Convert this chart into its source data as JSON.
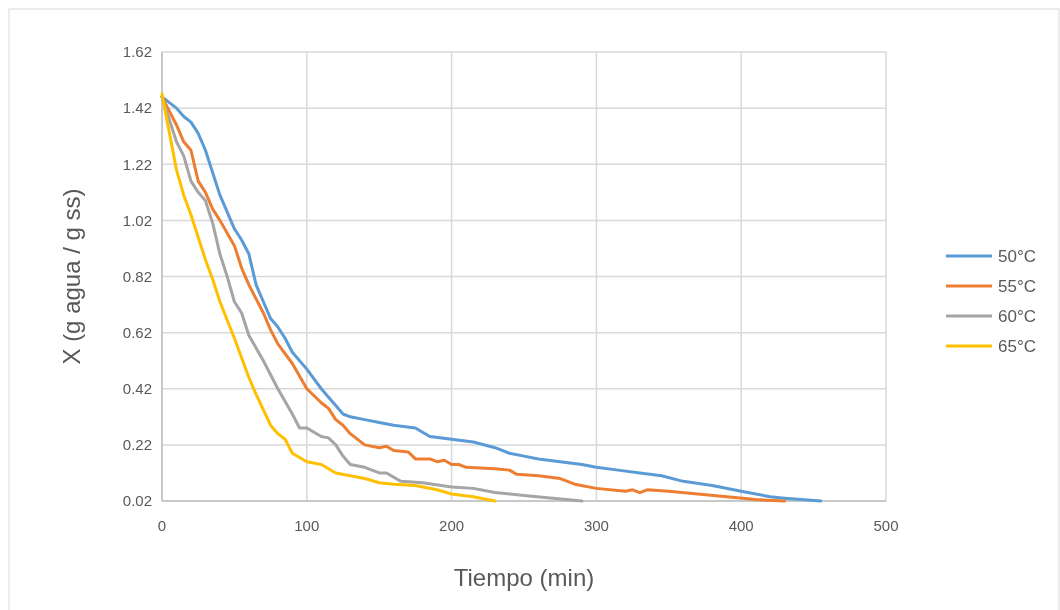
{
  "chart_data": {
    "type": "line",
    "xlabel": "Tiempo (min)",
    "ylabel": "X (g agua / g ss)",
    "xlim": [
      0,
      500
    ],
    "xticks": [
      0,
      100,
      200,
      300,
      400,
      500
    ],
    "ylim": [
      0.02,
      1.62
    ],
    "yticks": [
      0.02,
      0.22,
      0.42,
      0.62,
      0.82,
      1.02,
      1.22,
      1.42,
      1.62
    ],
    "grid": true,
    "legend": "right",
    "marker": "none",
    "line_style": "solid",
    "series": [
      {
        "name": "50°C",
        "color": "#5b9bd5",
        "x": [
          0,
          10,
          15,
          20,
          25,
          30,
          35,
          40,
          45,
          50,
          55,
          60,
          65,
          70,
          75,
          80,
          85,
          90,
          100,
          110,
          115,
          120,
          125,
          130,
          140,
          150,
          160,
          175,
          185,
          200,
          215,
          230,
          240,
          250,
          260,
          275,
          290,
          300,
          315,
          330,
          345,
          360,
          380,
          400,
          420,
          430,
          455
        ],
        "values": [
          1.46,
          1.42,
          1.39,
          1.37,
          1.33,
          1.27,
          1.19,
          1.11,
          1.05,
          0.99,
          0.95,
          0.9,
          0.79,
          0.73,
          0.67,
          0.64,
          0.6,
          0.55,
          0.49,
          0.42,
          0.39,
          0.36,
          0.33,
          0.32,
          0.31,
          0.3,
          0.29,
          0.28,
          0.25,
          0.24,
          0.23,
          0.21,
          0.19,
          0.18,
          0.17,
          0.16,
          0.15,
          0.14,
          0.13,
          0.12,
          0.11,
          0.09,
          0.075,
          0.055,
          0.035,
          0.03,
          0.02
        ]
      },
      {
        "name": "55°C",
        "color": "#ed7d31",
        "x": [
          0,
          10,
          15,
          20,
          25,
          30,
          35,
          40,
          50,
          55,
          60,
          70,
          75,
          80,
          90,
          100,
          110,
          115,
          120,
          125,
          130,
          140,
          150,
          155,
          160,
          170,
          175,
          185,
          190,
          195,
          200,
          205,
          210,
          230,
          240,
          245,
          260,
          275,
          285,
          300,
          320,
          325,
          330,
          335,
          350,
          370,
          390,
          410,
          430
        ],
        "values": [
          1.46,
          1.36,
          1.3,
          1.27,
          1.16,
          1.12,
          1.06,
          1.02,
          0.93,
          0.85,
          0.79,
          0.69,
          0.63,
          0.58,
          0.51,
          0.42,
          0.37,
          0.35,
          0.31,
          0.29,
          0.26,
          0.22,
          0.21,
          0.215,
          0.2,
          0.195,
          0.17,
          0.17,
          0.16,
          0.165,
          0.15,
          0.15,
          0.14,
          0.135,
          0.13,
          0.115,
          0.11,
          0.1,
          0.08,
          0.065,
          0.055,
          0.06,
          0.05,
          0.06,
          0.055,
          0.045,
          0.035,
          0.025,
          0.02
        ]
      },
      {
        "name": "60°C",
        "color": "#a5a5a5",
        "x": [
          0,
          10,
          15,
          20,
          25,
          30,
          35,
          40,
          45,
          50,
          55,
          60,
          70,
          80,
          90,
          95,
          100,
          110,
          115,
          120,
          125,
          130,
          140,
          150,
          155,
          165,
          180,
          200,
          215,
          230,
          250,
          270,
          290
        ],
        "values": [
          1.46,
          1.3,
          1.25,
          1.16,
          1.12,
          1.09,
          1.01,
          0.9,
          0.82,
          0.73,
          0.69,
          0.61,
          0.52,
          0.42,
          0.33,
          0.28,
          0.28,
          0.25,
          0.245,
          0.22,
          0.18,
          0.15,
          0.14,
          0.12,
          0.12,
          0.09,
          0.085,
          0.07,
          0.065,
          0.05,
          0.04,
          0.03,
          0.02
        ]
      },
      {
        "name": "65°C",
        "color": "#ffc000",
        "x": [
          0,
          10,
          15,
          20,
          25,
          30,
          35,
          40,
          50,
          60,
          65,
          75,
          80,
          85,
          90,
          100,
          110,
          120,
          130,
          140,
          150,
          160,
          175,
          190,
          200,
          215,
          230
        ],
        "values": [
          1.47,
          1.2,
          1.11,
          1.04,
          0.96,
          0.88,
          0.81,
          0.73,
          0.6,
          0.46,
          0.4,
          0.29,
          0.26,
          0.24,
          0.19,
          0.16,
          0.15,
          0.12,
          0.11,
          0.1,
          0.085,
          0.08,
          0.075,
          0.06,
          0.045,
          0.035,
          0.02
        ]
      }
    ]
  }
}
